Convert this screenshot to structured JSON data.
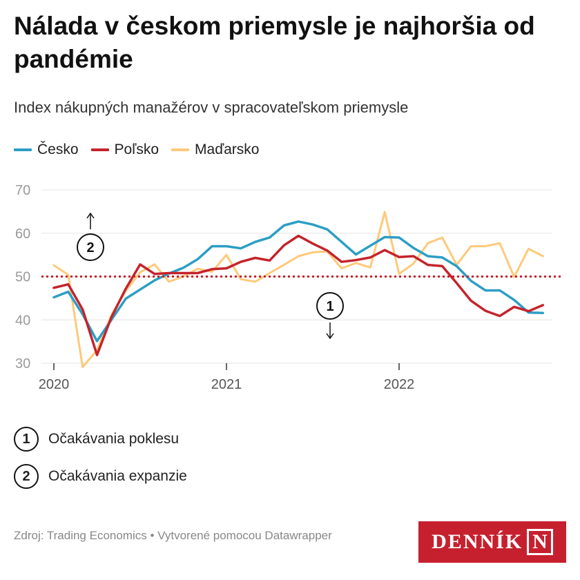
{
  "header": {
    "title": "Nálada v českom priemysle je najhoršia od pandémie",
    "subtitle": "Index nákupných manažérov v spracovateľskom priemysle"
  },
  "legend": [
    {
      "label": "Česko",
      "color": "#2b9ec4"
    },
    {
      "label": "Poľsko",
      "color": "#c4232b"
    },
    {
      "label": "Maďarsko",
      "color": "#ffc97a"
    }
  ],
  "notes": [
    {
      "num": "1",
      "text": "Očakávania poklesu"
    },
    {
      "num": "2",
      "text": "Očakávania expanzie"
    }
  ],
  "footer": {
    "source": "Zdroj: Trading Economics • Vytvorené pomocou Datawrapper",
    "logo_text": "DENNÍK",
    "logo_letter": "N"
  },
  "chart_data": {
    "type": "line",
    "title": "Nálada v českom priemysle je najhoršia od pandémie",
    "subtitle": "Index nákupných manažérov v spracovateľskom priemysle",
    "x": [
      "2020-01",
      "2020-02",
      "2020-03",
      "2020-04",
      "2020-05",
      "2020-06",
      "2020-07",
      "2020-08",
      "2020-09",
      "2020-10",
      "2020-11",
      "2020-12",
      "2021-01",
      "2021-02",
      "2021-03",
      "2021-04",
      "2021-05",
      "2021-06",
      "2021-07",
      "2021-08",
      "2021-09",
      "2021-10",
      "2021-11",
      "2021-12",
      "2022-01",
      "2022-02",
      "2022-03",
      "2022-04",
      "2022-05",
      "2022-06",
      "2022-07",
      "2022-08",
      "2022-09",
      "2022-10",
      "2022-11"
    ],
    "x_ticks": [
      "2020",
      "2021",
      "2022"
    ],
    "ylim": [
      30,
      70
    ],
    "y_ticks": [
      30,
      40,
      50,
      60,
      70
    ],
    "threshold": 50,
    "grid": true,
    "legend_position": "top-left",
    "series": [
      {
        "name": "Česko",
        "color": "#2b9ec4",
        "values": [
          45.2,
          46.5,
          41.3,
          35.1,
          40.0,
          44.9,
          47.0,
          49.1,
          50.7,
          52.0,
          54.0,
          57.0,
          57.0,
          56.5,
          58.0,
          59.0,
          61.8,
          62.7,
          62.0,
          60.9,
          58.0,
          55.1,
          57.1,
          59.1,
          59.0,
          56.6,
          54.7,
          54.4,
          52.4,
          49.0,
          46.8,
          46.8,
          44.6,
          41.7,
          41.6
        ]
      },
      {
        "name": "Poľsko",
        "color": "#c4232b",
        "values": [
          47.4,
          48.2,
          42.4,
          31.9,
          40.6,
          47.2,
          52.8,
          50.6,
          50.8,
          50.8,
          50.8,
          51.7,
          51.9,
          53.4,
          54.3,
          53.7,
          57.2,
          59.4,
          57.6,
          56.0,
          53.4,
          53.8,
          54.4,
          56.1,
          54.5,
          54.7,
          52.7,
          52.4,
          48.5,
          44.4,
          42.1,
          40.9,
          43.0,
          42.0,
          43.4
        ]
      },
      {
        "name": "Maďarsko",
        "color": "#ffc97a",
        "values": [
          52.6,
          50.4,
          29.1,
          33.0,
          41.1,
          46.7,
          51.0,
          52.8,
          48.8,
          50.0,
          51.8,
          51.1,
          55.0,
          49.4,
          48.8,
          50.8,
          52.7,
          54.7,
          55.6,
          55.8,
          51.9,
          53.1,
          52.1,
          64.9,
          50.6,
          53.0,
          57.7,
          59.0,
          52.7,
          57.0,
          57.0,
          57.7,
          49.9,
          56.4,
          54.7
        ]
      }
    ],
    "annotations": [
      {
        "num": "1",
        "text": "Očakávania poklesu",
        "direction": "down"
      },
      {
        "num": "2",
        "text": "Očakávania expanzie",
        "direction": "up"
      }
    ]
  }
}
